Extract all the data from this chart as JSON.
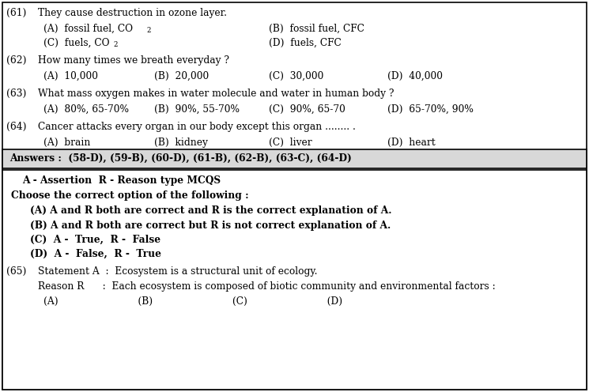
{
  "bg_color": "#ffffff",
  "border_color": "#000000",
  "q61_num": "(61)",
  "q61_text": "They cause destruction in ozone layer.",
  "q61_optA": "(A)  fossil fuel, CO",
  "q61_optB": "(B)  fossil fuel, CFC",
  "q61_optC": "(C)  fuels, CO",
  "q61_optD": "(D)  fuels, CFC",
  "q62_num": "(62)",
  "q62_text": "How many times we breath everyday ?",
  "q62_optA": "(A)  10,000",
  "q62_optB": "(B)  20,000",
  "q62_optC": "(C)  30,000",
  "q62_optD": "(D)  40,000",
  "q63_num": "(63)",
  "q63_text": "What mass oxygen makes in water molecule and water in human body ?",
  "q63_optA": "(A)  80%, 65-70%",
  "q63_optB": "(B)  90%, 55-70%",
  "q63_optC": "(C)  90%, 65-70",
  "q63_optD": "(D)  65-70%, 90%",
  "q64_num": "(64)",
  "q64_text": "Cancer attacks every organ in our body except this organ ........ .",
  "q64_optA": "(A)  brain",
  "q64_optB": "(B)  kidney",
  "q64_optC": "(C)  liver",
  "q64_optD": "(D)  heart",
  "answers_text": "Answers :  (58-D), (59-B), (60-D), (61-B), (62-B), (63-C), (64-D)",
  "answers_bg": "#d8d8d8",
  "assertion_header": "A - Assertion  R - Reason type MCQS",
  "instruction": "Choose the correct option of the following :",
  "opt_A": "(A) A and R both are correct and R is the correct explanation of A.",
  "opt_B": "(B) A and R both are correct but R is not correct explanation of A.",
  "opt_C": "(C)  A -  True,  R -  False",
  "opt_D": "(D)  A -  False,  R -  True",
  "q65_num": "(65)",
  "q65_stmtA": "Statement A  :  Ecosystem is a structural unit of ecology.",
  "q65_reasonR": "Reason R      :  Each ecosystem is composed of biotic community and environmental factors :",
  "q65_opts": "(A)                          (B)                          (C)                          (D)",
  "fs": 8.8,
  "fs_bold": 8.8,
  "fs_sub": 6.2
}
